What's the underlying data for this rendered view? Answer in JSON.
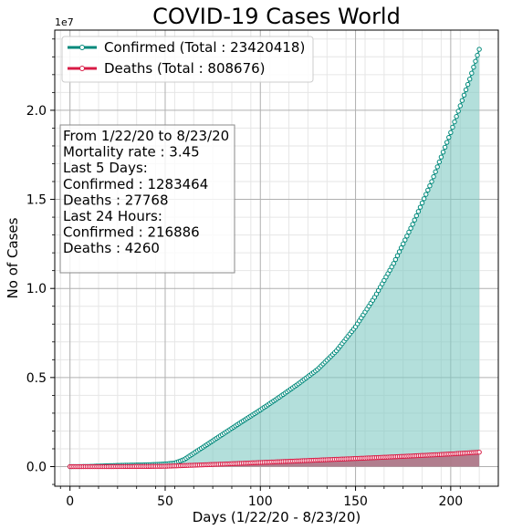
{
  "chart_data": {
    "type": "line",
    "title": "COVID-19 Cases World",
    "xlabel": "Days (1/22/20 - 8/23/20)",
    "ylabel": "No of Cases",
    "y_offset_label": "1e7",
    "xlim": [
      -8,
      225
    ],
    "ylim": [
      -0.11,
      2.45
    ],
    "y_scale_multiplier": 10000000,
    "x_ticks": [
      0,
      50,
      100,
      150,
      200
    ],
    "y_ticks": [
      0.0,
      0.5,
      1.0,
      1.5,
      2.0
    ],
    "y_tick_labels": [
      "0.0",
      "0.5",
      "1.0",
      "1.5",
      "2.0"
    ],
    "grid": true,
    "legend_position": "top-left",
    "series": [
      {
        "name": "Confirmed (Total : 23420418)",
        "color": "#00897b",
        "fill_color": "#80c9c3",
        "key_points_x": [
          0,
          10,
          20,
          30,
          40,
          45,
          50,
          55,
          60,
          65,
          70,
          75,
          80,
          90,
          100,
          110,
          120,
          130,
          140,
          150,
          160,
          170,
          180,
          190,
          200,
          210,
          215
        ],
        "key_points_y": [
          0.0,
          0.001,
          0.005,
          0.008,
          0.01,
          0.012,
          0.015,
          0.02,
          0.04,
          0.075,
          0.11,
          0.145,
          0.18,
          0.25,
          0.318,
          0.39,
          0.465,
          0.545,
          0.65,
          0.785,
          0.95,
          1.14,
          1.36,
          1.6,
          1.875,
          2.175,
          2.342
        ]
      },
      {
        "name": "Deaths (Total : 808676)",
        "color": "#d81b45",
        "fill_color": "#b06d80",
        "key_points_x": [
          0,
          20,
          40,
          50,
          60,
          70,
          80,
          100,
          120,
          140,
          160,
          180,
          200,
          215
        ],
        "key_points_y": [
          0.0,
          0.0,
          0.001,
          0.002,
          0.006,
          0.01,
          0.014,
          0.023,
          0.032,
          0.041,
          0.05,
          0.06,
          0.071,
          0.081
        ]
      }
    ],
    "annotation_lines": [
      "From 1/22/20 to 8/23/20",
      "Mortality rate : 3.45",
      "Last 5 Days:",
      "Confirmed : 1283464",
      "Deaths : 27768",
      "Last 24 Hours:",
      "Confirmed : 216886",
      "Deaths : 4260"
    ]
  }
}
